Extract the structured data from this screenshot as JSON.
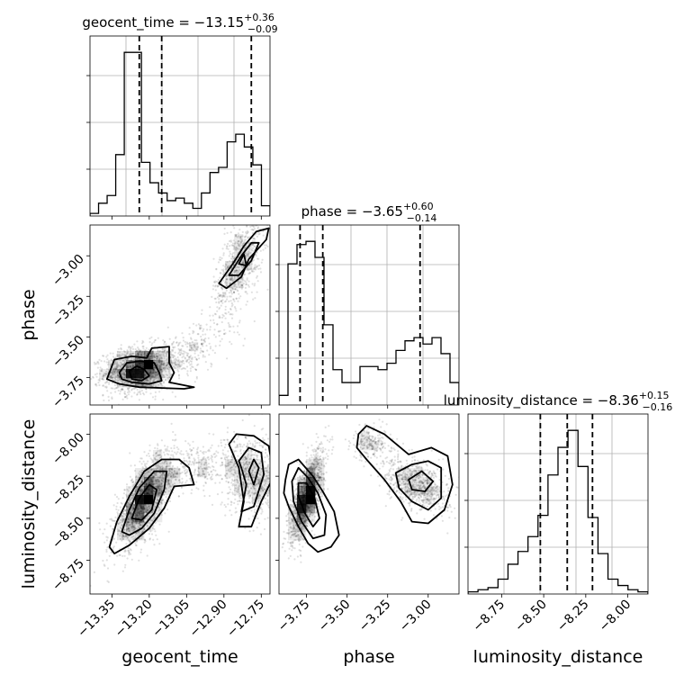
{
  "chart_data": {
    "type": "corner",
    "parameters": [
      {
        "name": "geocent_time",
        "median": -13.15,
        "err_plus": 0.36,
        "err_minus": 0.09,
        "title_main": "geocent_time = −13.15",
        "title_sup": "+0.36",
        "title_sub": "−0.09",
        "axis_label": "geocent_time",
        "range": [
          -13.438,
          -12.715
        ],
        "ticks": [
          -13.35,
          -13.2,
          -13.05,
          -12.9,
          -12.75
        ],
        "tick_labels": [
          "−13.35",
          "−13.20",
          "−13.05",
          "−12.90",
          "−12.75"
        ],
        "quantile_lines": [
          -13.24,
          -13.15,
          -12.79
        ],
        "hist_counts": [
          1,
          5,
          8,
          24,
          64,
          64,
          21,
          13,
          9,
          6,
          7,
          5,
          3,
          9,
          17,
          19,
          29,
          32,
          27,
          20,
          4
        ]
      },
      {
        "name": "phase",
        "median": -3.65,
        "err_plus": 0.6,
        "err_minus": 0.14,
        "title_main": "phase = −3.65",
        "title_sup": "+0.60",
        "title_sub": "−0.14",
        "axis_label": "phase",
        "range": [
          -3.92,
          -2.81
        ],
        "ticks": [
          -3.75,
          -3.5,
          -3.25,
          -3.0
        ],
        "tick_labels": [
          "−3.75",
          "−3.50",
          "−3.25",
          "−3.00"
        ],
        "quantile_lines": [
          -3.79,
          -3.65,
          -3.05
        ],
        "hist_counts": [
          3,
          44,
          50,
          51,
          46,
          25,
          11,
          7,
          7,
          12,
          12,
          11,
          13,
          17,
          20,
          21,
          19,
          21,
          16,
          7
        ]
      },
      {
        "name": "luminosity_distance",
        "median": -8.36,
        "err_plus": 0.15,
        "err_minus": 0.16,
        "title_main": "luminosity_distance = −8.36",
        "title_sup": "+0.15",
        "title_sub": "−0.16",
        "axis_label": "luminosity_distance",
        "range": [
          -8.95,
          -7.88
        ],
        "ticks": [
          -8.75,
          -8.5,
          -8.25,
          -8.0
        ],
        "tick_labels": [
          "−8.75",
          "−8.50",
          "−8.25",
          "−8.00"
        ],
        "quantile_lines": [
          -8.52,
          -8.36,
          -8.21
        ],
        "hist_counts": [
          1,
          2,
          3,
          7,
          14,
          20,
          27,
          37,
          56,
          69,
          77,
          60,
          36,
          19,
          7,
          4,
          2,
          1
        ]
      }
    ],
    "pairs": [
      {
        "x": "geocent_time",
        "y": "phase",
        "ylabel": "phase",
        "clusters": [
          {
            "mean": [
              -13.24,
              -3.7
            ],
            "sd": [
              0.07,
              0.07
            ],
            "rot": 0.2,
            "n": 1500
          },
          {
            "mean": [
              -12.84,
              -3.06
            ],
            "sd": [
              0.05,
              0.15
            ],
            "rot": 0.6,
            "n": 700
          },
          {
            "mean": [
              -13.05,
              -3.6
            ],
            "sd": [
              0.09,
              0.1
            ],
            "rot": 0.6,
            "n": 300
          }
        ],
        "contours": [
          [
            [
              -13.36,
              -3.72
            ],
            [
              -13.34,
              -3.64
            ],
            [
              -13.27,
              -3.62
            ],
            [
              -13.21,
              -3.63
            ],
            [
              -13.19,
              -3.57
            ],
            [
              -13.12,
              -3.56
            ],
            [
              -13.12,
              -3.66
            ],
            [
              -13.1,
              -3.72
            ],
            [
              -13.12,
              -3.78
            ],
            [
              -13.02,
              -3.81
            ],
            [
              -13.06,
              -3.82
            ],
            [
              -13.24,
              -3.81
            ],
            [
              -13.32,
              -3.79
            ],
            [
              -13.37,
              -3.76
            ]
          ],
          [
            [
              -13.32,
              -3.72
            ],
            [
              -13.29,
              -3.66
            ],
            [
              -13.24,
              -3.65
            ],
            [
              -13.18,
              -3.66
            ],
            [
              -13.16,
              -3.72
            ],
            [
              -13.15,
              -3.77
            ],
            [
              -13.2,
              -3.79
            ],
            [
              -13.27,
              -3.78
            ],
            [
              -13.31,
              -3.76
            ]
          ],
          [
            [
              -13.28,
              -3.71
            ],
            [
              -13.25,
              -3.68
            ],
            [
              -13.22,
              -3.7
            ],
            [
              -13.2,
              -3.74
            ],
            [
              -13.23,
              -3.77
            ],
            [
              -13.27,
              -3.76
            ]
          ],
          [
            [
              -12.92,
              -3.17
            ],
            [
              -12.86,
              -3.04
            ],
            [
              -12.82,
              -2.94
            ],
            [
              -12.77,
              -2.85
            ],
            [
              -12.72,
              -2.83
            ],
            [
              -12.73,
              -2.9
            ],
            [
              -12.8,
              -3.02
            ],
            [
              -12.83,
              -3.13
            ],
            [
              -12.89,
              -3.2
            ]
          ],
          [
            [
              -12.88,
              -3.12
            ],
            [
              -12.83,
              -3.0
            ],
            [
              -12.79,
              -2.92
            ],
            [
              -12.76,
              -2.92
            ],
            [
              -12.79,
              -3.03
            ],
            [
              -12.84,
              -3.12
            ]
          ],
          [
            [
              -12.84,
              -3.05
            ],
            [
              -12.82,
              -2.99
            ],
            [
              -12.81,
              -3.06
            ]
          ]
        ]
      },
      {
        "x": "geocent_time",
        "y": "luminosity_distance",
        "ylabel": "luminosity_distance",
        "clusters": [
          {
            "mean": [
              -13.22,
              -8.4
            ],
            "sd": [
              0.06,
              0.14
            ],
            "rot": 0.7,
            "n": 1500
          },
          {
            "mean": [
              -12.79,
              -8.25
            ],
            "sd": [
              0.06,
              0.12
            ],
            "rot": -0.2,
            "n": 700
          },
          {
            "mean": [
              -13.02,
              -8.2
            ],
            "sd": [
              0.08,
              0.08
            ],
            "rot": 0.3,
            "n": 300
          }
        ],
        "contours": [
          [
            [
              -13.36,
              -8.67
            ],
            [
              -13.33,
              -8.52
            ],
            [
              -13.28,
              -8.37
            ],
            [
              -13.22,
              -8.22
            ],
            [
              -13.15,
              -8.15
            ],
            [
              -13.08,
              -8.15
            ],
            [
              -13.04,
              -8.2
            ],
            [
              -13.02,
              -8.3
            ],
            [
              -13.1,
              -8.31
            ],
            [
              -13.14,
              -8.44
            ],
            [
              -13.2,
              -8.56
            ],
            [
              -13.28,
              -8.66
            ],
            [
              -13.34,
              -8.71
            ]
          ],
          [
            [
              -13.31,
              -8.58
            ],
            [
              -13.28,
              -8.45
            ],
            [
              -13.24,
              -8.32
            ],
            [
              -13.18,
              -8.22
            ],
            [
              -13.13,
              -8.22
            ],
            [
              -13.14,
              -8.33
            ],
            [
              -13.18,
              -8.47
            ],
            [
              -13.23,
              -8.56
            ],
            [
              -13.28,
              -8.6
            ]
          ],
          [
            [
              -13.27,
              -8.5
            ],
            [
              -13.24,
              -8.38
            ],
            [
              -13.2,
              -8.3
            ],
            [
              -13.17,
              -8.33
            ],
            [
              -13.19,
              -8.45
            ],
            [
              -13.23,
              -8.51
            ]
          ],
          [
            [
              -12.88,
              -8.06
            ],
            [
              -12.85,
              -8.0
            ],
            [
              -12.78,
              -8.01
            ],
            [
              -12.72,
              -8.07
            ],
            [
              -12.7,
              -8.25
            ],
            [
              -12.75,
              -8.4
            ],
            [
              -12.79,
              -8.55
            ],
            [
              -12.84,
              -8.55
            ],
            [
              -12.82,
              -8.4
            ],
            [
              -12.84,
              -8.2
            ]
          ],
          [
            [
              -12.84,
              -8.16
            ],
            [
              -12.8,
              -8.08
            ],
            [
              -12.75,
              -8.11
            ],
            [
              -12.74,
              -8.24
            ],
            [
              -12.78,
              -8.43
            ],
            [
              -12.83,
              -8.46
            ],
            [
              -12.81,
              -8.3
            ],
            [
              -12.83,
              -8.2
            ]
          ],
          [
            [
              -12.8,
              -8.22
            ],
            [
              -12.78,
              -8.15
            ],
            [
              -12.76,
              -8.2
            ],
            [
              -12.78,
              -8.3
            ]
          ]
        ]
      },
      {
        "x": "phase",
        "y": "luminosity_distance",
        "ylabel": "",
        "clusters": [
          {
            "mean": [
              -3.75,
              -8.37
            ],
            "sd": [
              0.05,
              0.13
            ],
            "rot": 0.7,
            "n": 1500
          },
          {
            "mean": [
              -3.07,
              -8.3
            ],
            "sd": [
              0.1,
              0.08
            ],
            "rot": -0.4,
            "n": 700
          },
          {
            "mean": [
              -3.35,
              -8.05
            ],
            "sd": [
              0.06,
              0.05
            ],
            "rot": 0.0,
            "n": 200
          }
        ],
        "contours": [
          [
            [
              -3.88,
              -8.27
            ],
            [
              -3.86,
              -8.18
            ],
            [
              -3.8,
              -8.15
            ],
            [
              -3.71,
              -8.25
            ],
            [
              -3.65,
              -8.34
            ],
            [
              -3.58,
              -8.46
            ],
            [
              -3.55,
              -8.6
            ],
            [
              -3.6,
              -8.67
            ],
            [
              -3.68,
              -8.7
            ],
            [
              -3.74,
              -8.65
            ],
            [
              -3.8,
              -8.55
            ],
            [
              -3.86,
              -8.43
            ],
            [
              -3.89,
              -8.35
            ]
          ],
          [
            [
              -3.84,
              -8.28
            ],
            [
              -3.8,
              -8.2
            ],
            [
              -3.74,
              -8.26
            ],
            [
              -3.68,
              -8.35
            ],
            [
              -3.63,
              -8.48
            ],
            [
              -3.64,
              -8.6
            ],
            [
              -3.71,
              -8.62
            ],
            [
              -3.78,
              -8.52
            ],
            [
              -3.83,
              -8.4
            ]
          ],
          [
            [
              -3.8,
              -8.29
            ],
            [
              -3.75,
              -8.29
            ],
            [
              -3.7,
              -8.38
            ],
            [
              -3.67,
              -8.5
            ],
            [
              -3.71,
              -8.55
            ],
            [
              -3.76,
              -8.47
            ],
            [
              -3.8,
              -8.37
            ]
          ],
          [
            [
              -3.43,
              -8.0
            ],
            [
              -3.38,
              -7.95
            ],
            [
              -3.27,
              -8.0
            ],
            [
              -3.12,
              -8.12
            ],
            [
              -2.98,
              -8.08
            ],
            [
              -2.88,
              -8.13
            ],
            [
              -2.85,
              -8.3
            ],
            [
              -2.9,
              -8.45
            ],
            [
              -3.0,
              -8.53
            ],
            [
              -3.1,
              -8.52
            ],
            [
              -3.17,
              -8.4
            ],
            [
              -3.27,
              -8.27
            ],
            [
              -3.38,
              -8.15
            ],
            [
              -3.44,
              -8.08
            ]
          ],
          [
            [
              -3.2,
              -8.23
            ],
            [
              -3.1,
              -8.18
            ],
            [
              -3.0,
              -8.16
            ],
            [
              -2.92,
              -8.2
            ],
            [
              -2.92,
              -8.38
            ],
            [
              -3.0,
              -8.45
            ],
            [
              -3.1,
              -8.4
            ],
            [
              -3.18,
              -8.32
            ]
          ],
          [
            [
              -3.12,
              -8.27
            ],
            [
              -3.04,
              -8.22
            ],
            [
              -2.97,
              -8.28
            ],
            [
              -3.02,
              -8.34
            ],
            [
              -3.1,
              -8.33
            ]
          ]
        ]
      }
    ]
  }
}
